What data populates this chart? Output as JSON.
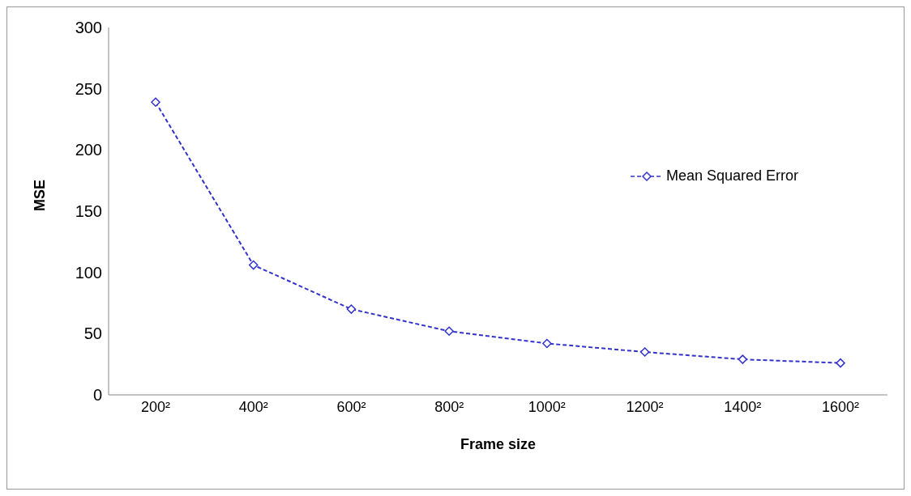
{
  "chart_data": {
    "type": "line",
    "xlabel": "Frame size",
    "ylabel": "MSE",
    "categories": [
      "200²",
      "400²",
      "600²",
      "800²",
      "1000²",
      "1200²",
      "1400²",
      "1600²"
    ],
    "series": [
      {
        "name": "Mean Squared Error",
        "color": "#3333cc",
        "values": [
          239,
          106,
          70,
          52,
          42,
          35,
          29,
          26
        ]
      }
    ],
    "ylim": [
      0,
      300
    ],
    "yticks": [
      0,
      50,
      100,
      150,
      200,
      250,
      300
    ],
    "grid": false,
    "legend": "right",
    "marker": "diamond",
    "line_style": "dashed"
  }
}
